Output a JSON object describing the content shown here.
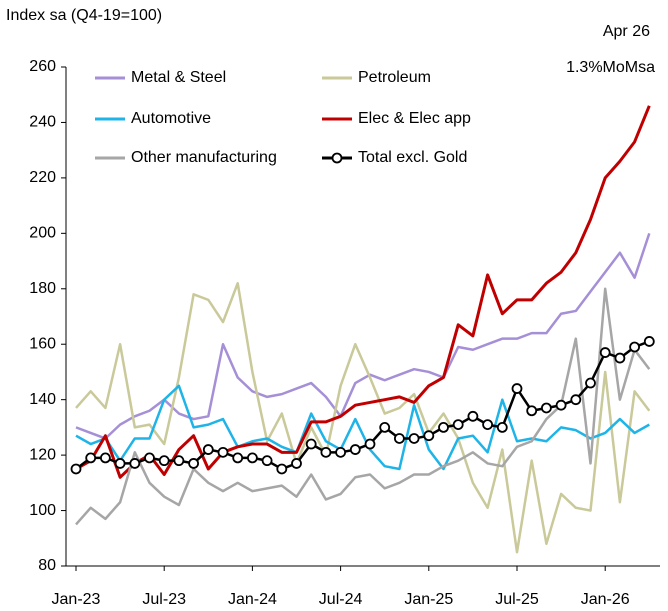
{
  "chart_data": {
    "type": "line",
    "title": "Index sa (Q4-19=100)",
    "annotations": [
      "Apr 26",
      "1.3%MoMsa"
    ],
    "categories": [
      "Jan-23",
      null,
      null,
      null,
      null,
      null,
      "Jul-23",
      null,
      null,
      null,
      null,
      null,
      "Jan-24",
      null,
      null,
      null,
      null,
      null,
      "Jul-24",
      null,
      null,
      null,
      null,
      null,
      "Jan-25",
      null,
      null,
      null,
      null,
      null,
      "Jul-25",
      null,
      null,
      null,
      null,
      null,
      "Jan-26",
      null,
      null,
      null
    ],
    "ylim": [
      80,
      260
    ],
    "yticks": [
      80,
      100,
      120,
      140,
      160,
      180,
      200,
      220,
      240,
      260
    ],
    "series": [
      {
        "name": "Metal & Steel",
        "color": "#a58fd6",
        "values": [
          130,
          128,
          126,
          131,
          134,
          136,
          140,
          135,
          133,
          134,
          160,
          148,
          143,
          141,
          142,
          144,
          146,
          141,
          134,
          146,
          149,
          147,
          149,
          151,
          150,
          148,
          159,
          158,
          160,
          162,
          162,
          164,
          164,
          171,
          172,
          179,
          186,
          193,
          184,
          200
        ]
      },
      {
        "name": "Petroleum",
        "color": "#c9c99a",
        "values": [
          137,
          143,
          137,
          160,
          130,
          131,
          124,
          148,
          178,
          176,
          168,
          182,
          150,
          125,
          135,
          117,
          130,
          120,
          145,
          160,
          148,
          135,
          137,
          142,
          128,
          135,
          126,
          110,
          101,
          122,
          85,
          118,
          88,
          106,
          101,
          100,
          150,
          103,
          143,
          136
        ]
      },
      {
        "name": "Automotive",
        "color": "#1eb4e8",
        "values": [
          127,
          124,
          126,
          118,
          126,
          126,
          140,
          145,
          130,
          131,
          133,
          123,
          125,
          126,
          123,
          121,
          135,
          125,
          122,
          133,
          122,
          116,
          115,
          138,
          122,
          115,
          126,
          127,
          121,
          140,
          125,
          126,
          125,
          130,
          129,
          126,
          128,
          133,
          128,
          131
        ]
      },
      {
        "name": "Elec & Elec app",
        "color": "#c00000",
        "values": [
          115,
          118,
          127,
          112,
          117,
          120,
          113,
          122,
          127,
          115,
          121,
          123,
          124,
          124,
          121,
          121,
          132,
          132,
          134,
          138,
          139,
          140,
          141,
          139,
          145,
          148,
          167,
          163,
          185,
          171,
          176,
          176,
          182,
          186,
          193,
          205,
          220,
          226,
          233,
          246
        ]
      },
      {
        "name": "Other manufacturing",
        "color": "#a6a6a6",
        "values": [
          95,
          101,
          97,
          103,
          121,
          110,
          105,
          102,
          115,
          110,
          107,
          110,
          107,
          108,
          109,
          105,
          113,
          104,
          106,
          112,
          113,
          108,
          110,
          113,
          113,
          116,
          118,
          121,
          117,
          116,
          123,
          125,
          133,
          138,
          162,
          117,
          180,
          140,
          158,
          151
        ]
      },
      {
        "name": "Total excl. Gold",
        "color": "#000000",
        "markers": true,
        "values": [
          115,
          119,
          119,
          117,
          117,
          119,
          118,
          118,
          117,
          122,
          121,
          119,
          119,
          118,
          115,
          117,
          124,
          121,
          121,
          122,
          124,
          130,
          126,
          126,
          127,
          130,
          131,
          134,
          131,
          130,
          144,
          136,
          137,
          138,
          140,
          146,
          157,
          155,
          159,
          161
        ]
      }
    ]
  }
}
